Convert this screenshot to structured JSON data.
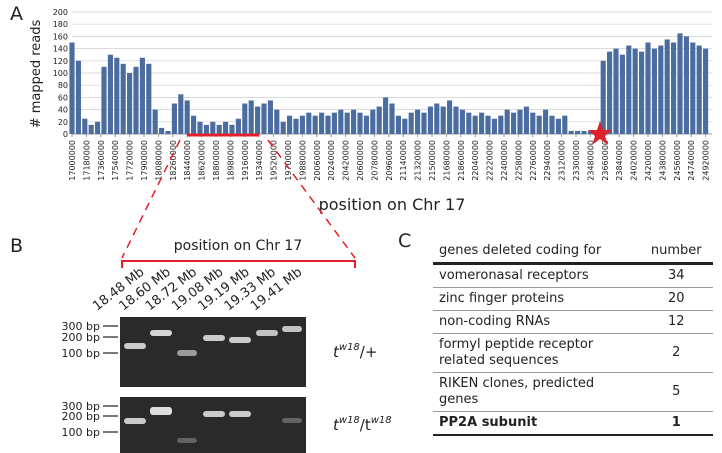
{
  "chart_data": {
    "type": "bar",
    "panel": "A",
    "xlabel": "position on Chr 17",
    "ylabel": "# mapped reads",
    "x": [
      17000000,
      17080000,
      17160000,
      17240000,
      17320000,
      17400000,
      17480000,
      17560000,
      17640000,
      17720000,
      17800000,
      17880000,
      17960000,
      18040000,
      18120000,
      18200000,
      18280000,
      18360000,
      18440000,
      18520000,
      18600000,
      18680000,
      18760000,
      18840000,
      18920000,
      19000000,
      19080000,
      19160000,
      19240000,
      19320000,
      19400000,
      19480000,
      19560000,
      19640000,
      19720000,
      19800000,
      19880000,
      19960000,
      20040000,
      20120000,
      20200000,
      20280000,
      20360000,
      20440000,
      20520000,
      20600000,
      20680000,
      20760000,
      20840000,
      20920000,
      21000000,
      21080000,
      21160000,
      21240000,
      21320000,
      21400000,
      21480000,
      21560000,
      21640000,
      21720000,
      21800000,
      21880000,
      21960000,
      22040000,
      22120000,
      22200000,
      22280000,
      22360000,
      22440000,
      22520000,
      22600000,
      22680000,
      22760000,
      22840000,
      22920000,
      23000000,
      23080000,
      23160000,
      23240000,
      23320000,
      23400000,
      23480000,
      23560000,
      23640000,
      23720000,
      23800000,
      23880000,
      23960000,
      24040000,
      24120000,
      24200000,
      24280000,
      24360000,
      24440000,
      24520000,
      24600000,
      24680000,
      24760000,
      24840000,
      24920000
    ],
    "values": [
      150,
      120,
      25,
      15,
      20,
      110,
      130,
      125,
      115,
      100,
      110,
      125,
      115,
      40,
      10,
      5,
      50,
      65,
      55,
      30,
      20,
      15,
      20,
      15,
      20,
      15,
      25,
      50,
      55,
      45,
      50,
      55,
      40,
      20,
      30,
      25,
      30,
      35,
      30,
      35,
      30,
      35,
      40,
      35,
      40,
      35,
      30,
      40,
      45,
      60,
      50,
      30,
      25,
      35,
      40,
      35,
      45,
      50,
      45,
      55,
      45,
      40,
      35,
      30,
      35,
      30,
      25,
      30,
      40,
      35,
      40,
      45,
      35,
      30,
      40,
      30,
      25,
      30,
      5,
      5,
      5,
      5,
      5,
      120,
      135,
      140,
      130,
      145,
      140,
      135,
      150,
      140,
      145,
      155,
      150,
      165,
      160,
      150,
      145,
      140
    ],
    "color": "#4b6c9e",
    "xlim": [
      17000000,
      25000000
    ],
    "xticks": [
      17000000,
      17180000,
      17360000,
      17540000,
      17720000,
      17900000,
      18080000,
      18260000,
      18440000,
      18620000,
      18800000,
      18980000,
      19160000,
      19340000,
      19520000,
      19700000,
      19880000,
      20060000,
      20240000,
      20420000,
      20600000,
      20780000,
      20960000,
      21140000,
      21320000,
      21500000,
      21680000,
      21860000,
      22040000,
      22220000,
      22400000,
      22580000,
      22760000,
      22940000,
      23120000,
      23300000,
      23480000,
      23660000,
      23840000,
      24020000,
      24200000,
      24380000,
      24560000,
      24740000,
      24920000
    ],
    "ylim": [
      0,
      200
    ],
    "yticks": [
      0,
      20,
      40,
      60,
      80,
      100,
      120,
      140,
      160,
      180,
      200
    ],
    "grid": true
  },
  "panel_b": {
    "panel": "B",
    "bracket_label": "position on Chr 17",
    "lanes": [
      "18.48 Mb",
      "18.60 Mb",
      "18.72 Mb",
      "19.08 Mb",
      "19.19 Mb",
      "19.33 Mb",
      "19.41 Mb"
    ],
    "markers": [
      "300 bp",
      "200 bp",
      "100 bp"
    ],
    "genotypes": [
      [
        "t",
        "w18",
        "/+"
      ],
      [
        "t",
        "w18",
        "/t",
        "w18"
      ]
    ]
  },
  "panel_c": {
    "panel": "C",
    "header": [
      "genes deleted coding for",
      "number"
    ],
    "rows": [
      [
        "vomeronasal receptors",
        34
      ],
      [
        "zinc finger proteins",
        20
      ],
      [
        "non-coding RNAs",
        12
      ],
      [
        "formyl peptide receptor related sequences",
        2
      ],
      [
        "RIKEN clones, predicted genes",
        5
      ],
      [
        "PP2A subunit",
        1
      ]
    ],
    "bold_last_row": true
  }
}
